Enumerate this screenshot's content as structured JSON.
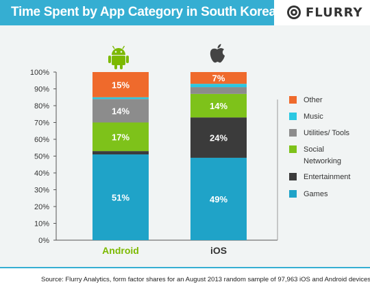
{
  "header": {
    "title": "Time Spent by App Category in South Korea",
    "logo_text": "FLURRY"
  },
  "footer": {
    "source": "Source: Flurry Analytics, form factor shares for an August 2013 random sample of 97,963 iOS and Android devices."
  },
  "colors": {
    "header": "#35aed2",
    "Games": "#1fa3c8",
    "Entertainment": "#3b3b3b",
    "Social Networking": "#7ec21a",
    "Utilities/ Tools": "#8c8c8c",
    "Music": "#2bc8e2",
    "Other": "#ef6a2c",
    "android_label": "#7cb900",
    "ios_label": "#333333"
  },
  "icons": {
    "android": "android-robot-icon",
    "ios": "apple-logo-icon",
    "logo": "flurry-logo-icon"
  },
  "chart_data": {
    "type": "bar",
    "stacked": true,
    "title": "Time Spent by App Category in South Korea",
    "categories": [
      "Android",
      "iOS"
    ],
    "ylim": [
      0,
      100
    ],
    "y_ticks": [
      "0%",
      "10%",
      "20%",
      "30%",
      "40%",
      "50%",
      "60%",
      "70%",
      "80%",
      "90%",
      "100%"
    ],
    "legend_position": "right",
    "legend": [
      "Other",
      "Music",
      "Utilities/ Tools",
      "Social Networking",
      "Entertainment",
      "Games"
    ],
    "series": [
      {
        "name": "Games",
        "values": [
          51,
          49
        ],
        "labels": [
          "51%",
          "49%"
        ]
      },
      {
        "name": "Entertainment",
        "values": [
          2,
          24
        ],
        "labels": [
          "",
          "24%"
        ]
      },
      {
        "name": "Social Networking",
        "values": [
          17,
          14
        ],
        "labels": [
          "17%",
          "14%"
        ]
      },
      {
        "name": "Utilities/ Tools",
        "values": [
          14,
          4
        ],
        "labels": [
          "14%",
          ""
        ]
      },
      {
        "name": "Music",
        "values": [
          1,
          2
        ],
        "labels": [
          "",
          ""
        ]
      },
      {
        "name": "Other",
        "values": [
          15,
          7
        ],
        "labels": [
          "15%",
          "7%"
        ]
      }
    ]
  }
}
